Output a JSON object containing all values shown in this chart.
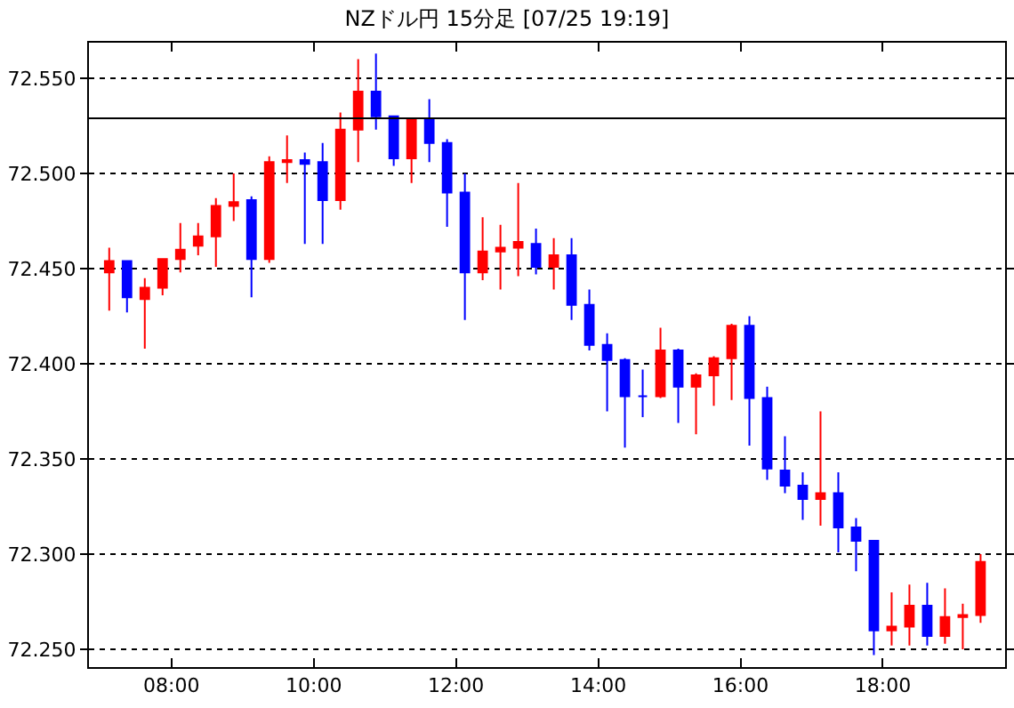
{
  "chart_data": {
    "type": "candlestick",
    "title": "NZドル円 15分足 [07/25 19:19]",
    "x": [
      7.125,
      7.375,
      7.625,
      7.875,
      8.125,
      8.375,
      8.625,
      8.875,
      9.125,
      9.375,
      9.625,
      9.875,
      10.125,
      10.375,
      10.625,
      10.875,
      11.125,
      11.375,
      11.625,
      11.875,
      12.125,
      12.375,
      12.625,
      12.875,
      13.125,
      13.375,
      13.625,
      13.875,
      14.125,
      14.375,
      14.625,
      14.875,
      15.125,
      15.375,
      15.625,
      15.875,
      16.125,
      16.375,
      16.625,
      16.875,
      17.125,
      17.375,
      17.625,
      17.875,
      18.125,
      18.375,
      18.625,
      18.875,
      19.125,
      19.375
    ],
    "ohlc": [
      [
        72.448,
        72.461,
        72.428,
        72.454
      ],
      [
        72.454,
        72.454,
        72.427,
        72.435
      ],
      [
        72.434,
        72.445,
        72.408,
        72.44
      ],
      [
        72.44,
        72.455,
        72.436,
        72.455
      ],
      [
        72.455,
        72.474,
        72.448,
        72.46
      ],
      [
        72.462,
        72.474,
        72.457,
        72.467
      ],
      [
        72.467,
        72.487,
        72.451,
        72.483
      ],
      [
        72.483,
        72.5,
        72.475,
        72.485
      ],
      [
        72.486,
        72.488,
        72.435,
        72.455
      ],
      [
        72.455,
        72.509,
        72.453,
        72.506
      ],
      [
        72.506,
        72.52,
        72.495,
        72.507
      ],
      [
        72.507,
        72.511,
        72.463,
        72.505
      ],
      [
        72.506,
        72.516,
        72.463,
        72.486
      ],
      [
        72.486,
        72.532,
        72.481,
        72.523
      ],
      [
        72.523,
        72.56,
        72.506,
        72.543
      ],
      [
        72.543,
        72.563,
        72.523,
        72.53
      ],
      [
        72.53,
        72.53,
        72.504,
        72.508
      ],
      [
        72.508,
        72.528,
        72.495,
        72.528
      ],
      [
        72.528,
        72.539,
        72.506,
        72.516
      ],
      [
        72.516,
        72.518,
        72.472,
        72.49
      ],
      [
        72.49,
        72.5,
        72.423,
        72.448
      ],
      [
        72.448,
        72.477,
        72.444,
        72.459
      ],
      [
        72.459,
        72.473,
        72.439,
        72.461
      ],
      [
        72.461,
        72.495,
        72.446,
        72.464
      ],
      [
        72.463,
        72.471,
        72.447,
        72.451
      ],
      [
        72.451,
        72.466,
        72.439,
        72.457
      ],
      [
        72.457,
        72.466,
        72.423,
        72.431
      ],
      [
        72.431,
        72.439,
        72.407,
        72.41
      ],
      [
        72.41,
        72.416,
        72.375,
        72.402
      ],
      [
        72.402,
        72.403,
        72.356,
        72.383
      ],
      [
        72.383,
        72.397,
        72.372,
        72.383
      ],
      [
        72.383,
        72.419,
        72.382,
        72.407
      ],
      [
        72.407,
        72.408,
        72.369,
        72.388
      ],
      [
        72.388,
        72.395,
        72.363,
        72.394
      ],
      [
        72.394,
        72.404,
        72.378,
        72.403
      ],
      [
        72.403,
        72.421,
        72.381,
        72.42
      ],
      [
        72.42,
        72.425,
        72.357,
        72.382
      ],
      [
        72.382,
        72.388,
        72.339,
        72.345
      ],
      [
        72.344,
        72.362,
        72.332,
        72.336
      ],
      [
        72.336,
        72.343,
        72.318,
        72.329
      ],
      [
        72.329,
        72.375,
        72.315,
        72.332
      ],
      [
        72.332,
        72.343,
        72.301,
        72.314
      ],
      [
        72.314,
        72.319,
        72.291,
        72.307
      ],
      [
        72.307,
        72.307,
        72.247,
        72.26
      ],
      [
        72.26,
        72.28,
        72.252,
        72.262
      ],
      [
        72.262,
        72.284,
        72.252,
        72.273
      ],
      [
        72.273,
        72.285,
        72.252,
        72.257
      ],
      [
        72.257,
        72.282,
        72.253,
        72.267
      ],
      [
        72.267,
        72.274,
        72.25,
        72.268
      ],
      [
        72.268,
        72.3,
        72.264,
        72.296
      ]
    ],
    "colors": [
      "#ff0000",
      "#0000ff",
      "#ff0000",
      "#ff0000",
      "#ff0000",
      "#ff0000",
      "#ff0000",
      "#ff0000",
      "#0000ff",
      "#ff0000",
      "#ff0000",
      "#0000ff",
      "#0000ff",
      "#ff0000",
      "#ff0000",
      "#0000ff",
      "#0000ff",
      "#ff0000",
      "#0000ff",
      "#0000ff",
      "#0000ff",
      "#ff0000",
      "#ff0000",
      "#ff0000",
      "#0000ff",
      "#ff0000",
      "#0000ff",
      "#0000ff",
      "#0000ff",
      "#0000ff",
      "#0000ff",
      "#ff0000",
      "#0000ff",
      "#ff0000",
      "#ff0000",
      "#ff0000",
      "#0000ff",
      "#0000ff",
      "#0000ff",
      "#0000ff",
      "#ff0000",
      "#0000ff",
      "#0000ff",
      "#0000ff",
      "#ff0000",
      "#ff0000",
      "#0000ff",
      "#ff0000",
      "#ff0000",
      "#ff0000"
    ],
    "xlim": [
      6.84,
      19.72
    ],
    "xticks": [
      {
        "value": 8,
        "label": "08:00"
      },
      {
        "value": 10,
        "label": "10:00"
      },
      {
        "value": 12,
        "label": "12:00"
      },
      {
        "value": 14,
        "label": "14:00"
      },
      {
        "value": 16,
        "label": "16:00"
      },
      {
        "value": 18,
        "label": "18:00"
      }
    ],
    "ylim": [
      72.2407,
      72.5687
    ],
    "yticks": [
      {
        "value": 72.25,
        "label": "72.250"
      },
      {
        "value": 72.3,
        "label": "72.300"
      },
      {
        "value": 72.35,
        "label": "72.350"
      },
      {
        "value": 72.4,
        "label": "72.400"
      },
      {
        "value": 72.45,
        "label": "72.450"
      },
      {
        "value": 72.5,
        "label": "72.500"
      },
      {
        "value": 72.55,
        "label": "72.550"
      }
    ],
    "grid": "y",
    "ref_lines": [
      {
        "axis": "y",
        "value": 72.529,
        "color": "#000000",
        "line_style": "solid"
      }
    ]
  }
}
